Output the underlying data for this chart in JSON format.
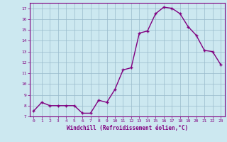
{
  "x": [
    0,
    1,
    2,
    3,
    4,
    5,
    6,
    7,
    8,
    9,
    10,
    11,
    12,
    13,
    14,
    15,
    16,
    17,
    18,
    19,
    20,
    21,
    22,
    23
  ],
  "y": [
    7.5,
    8.3,
    8.0,
    8.0,
    8.0,
    8.0,
    7.3,
    7.3,
    8.5,
    8.3,
    9.5,
    11.3,
    11.5,
    14.7,
    14.9,
    16.5,
    17.1,
    17.0,
    16.5,
    15.3,
    14.5,
    13.1,
    13.0,
    11.8
  ],
  "line_color": "#800080",
  "marker": "+",
  "marker_size": 3.5,
  "marker_lw": 1.0,
  "xlabel": "Windchill (Refroidissement éolien,°C)",
  "xlim": [
    -0.5,
    23.5
  ],
  "ylim": [
    7,
    17.5
  ],
  "yticks": [
    7,
    8,
    9,
    10,
    11,
    12,
    13,
    14,
    15,
    16,
    17
  ],
  "xticks": [
    0,
    1,
    2,
    3,
    4,
    5,
    6,
    7,
    8,
    9,
    10,
    11,
    12,
    13,
    14,
    15,
    16,
    17,
    18,
    19,
    20,
    21,
    22,
    23
  ],
  "bg_color": "#cce8f0",
  "grid_color": "#99bbcc",
  "line_width": 1.0,
  "tick_fontsize": 4.5,
  "xlabel_fontsize": 5.5,
  "tick_color": "#800080",
  "label_color": "#800080",
  "axis_color": "#800080",
  "spine_lw": 0.8,
  "grid_lw": 0.5
}
